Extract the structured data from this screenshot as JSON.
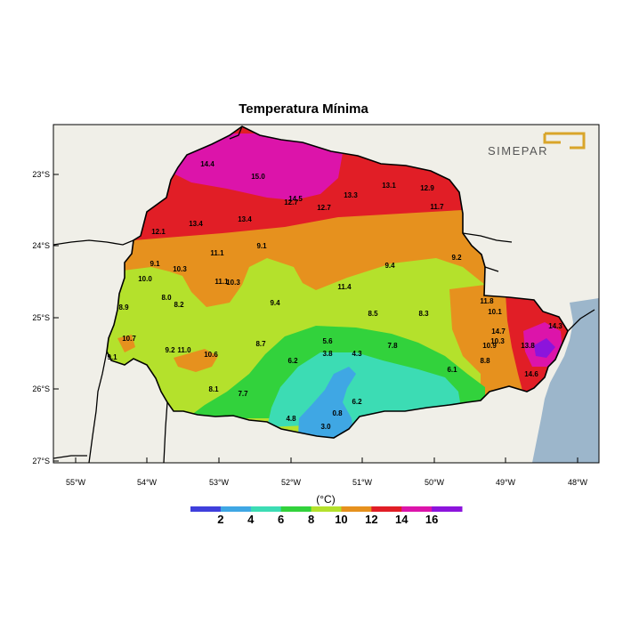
{
  "title": "Temperatura Mínima",
  "logo": {
    "text": "SIMEPAR",
    "accent_color": "#d9a52a"
  },
  "axes": {
    "lon_ticks": [
      "55°W",
      "54°W",
      "53°W",
      "52°W",
      "51°W",
      "50°W",
      "49°W",
      "48°W"
    ],
    "lat_ticks": [
      "23°S",
      "24°S",
      "25°S",
      "26°S",
      "27°S"
    ]
  },
  "colors": {
    "land": "#f0efe8",
    "ocean": "#9cb6cb",
    "frame": "#000000"
  },
  "colorbar": {
    "unit": "(°C)",
    "labels": [
      "2",
      "4",
      "6",
      "8",
      "10",
      "12",
      "14",
      "16"
    ],
    "colors": [
      "#3f3fdc",
      "#3fa7e4",
      "#3cdcb4",
      "#32d23c",
      "#b4e12c",
      "#e6911e",
      "#e11e26",
      "#dc14aa",
      "#8c14dc"
    ]
  },
  "map_values": [
    {
      "v": "14.4"
    },
    {
      "v": "15.0"
    },
    {
      "v": "12.7"
    },
    {
      "v": "14.5"
    },
    {
      "v": "13.3"
    },
    {
      "v": "13.1"
    },
    {
      "v": "12.9"
    },
    {
      "v": "12.7"
    },
    {
      "v": "11.7"
    },
    {
      "v": "12.1"
    },
    {
      "v": "13.4"
    },
    {
      "v": "13.4"
    },
    {
      "v": "11.1"
    },
    {
      "v": "9.1"
    },
    {
      "v": "9.1"
    },
    {
      "v": "10.3"
    },
    {
      "v": "9.4"
    },
    {
      "v": "9.2"
    },
    {
      "v": "10.0"
    },
    {
      "v": "11.1"
    },
    {
      "v": "10.3"
    },
    {
      "v": "11.4"
    },
    {
      "v": "8.0"
    },
    {
      "v": "8.2"
    },
    {
      "v": "8.9"
    },
    {
      "v": "9.4"
    },
    {
      "v": "8.5"
    },
    {
      "v": "8.3"
    },
    {
      "v": "11.8"
    },
    {
      "v": "10.7"
    },
    {
      "v": "5.6"
    },
    {
      "v": "7.8"
    },
    {
      "v": "10.1"
    },
    {
      "v": "14.7"
    },
    {
      "v": "14.3"
    },
    {
      "v": "9.2"
    },
    {
      "v": "11.0"
    },
    {
      "v": "10.6"
    },
    {
      "v": "8.7"
    },
    {
      "v": "3.8"
    },
    {
      "v": "4.3"
    },
    {
      "v": "10.9"
    },
    {
      "v": "10.3"
    },
    {
      "v": "13.8"
    },
    {
      "v": "9.1"
    },
    {
      "v": "6.2"
    },
    {
      "v": "8.8"
    },
    {
      "v": "6.1"
    },
    {
      "v": "14.6"
    },
    {
      "v": "8.1"
    },
    {
      "v": "7.7"
    },
    {
      "v": "4.8"
    },
    {
      "v": "6.2"
    },
    {
      "v": "0.8"
    },
    {
      "v": "3.0"
    }
  ]
}
